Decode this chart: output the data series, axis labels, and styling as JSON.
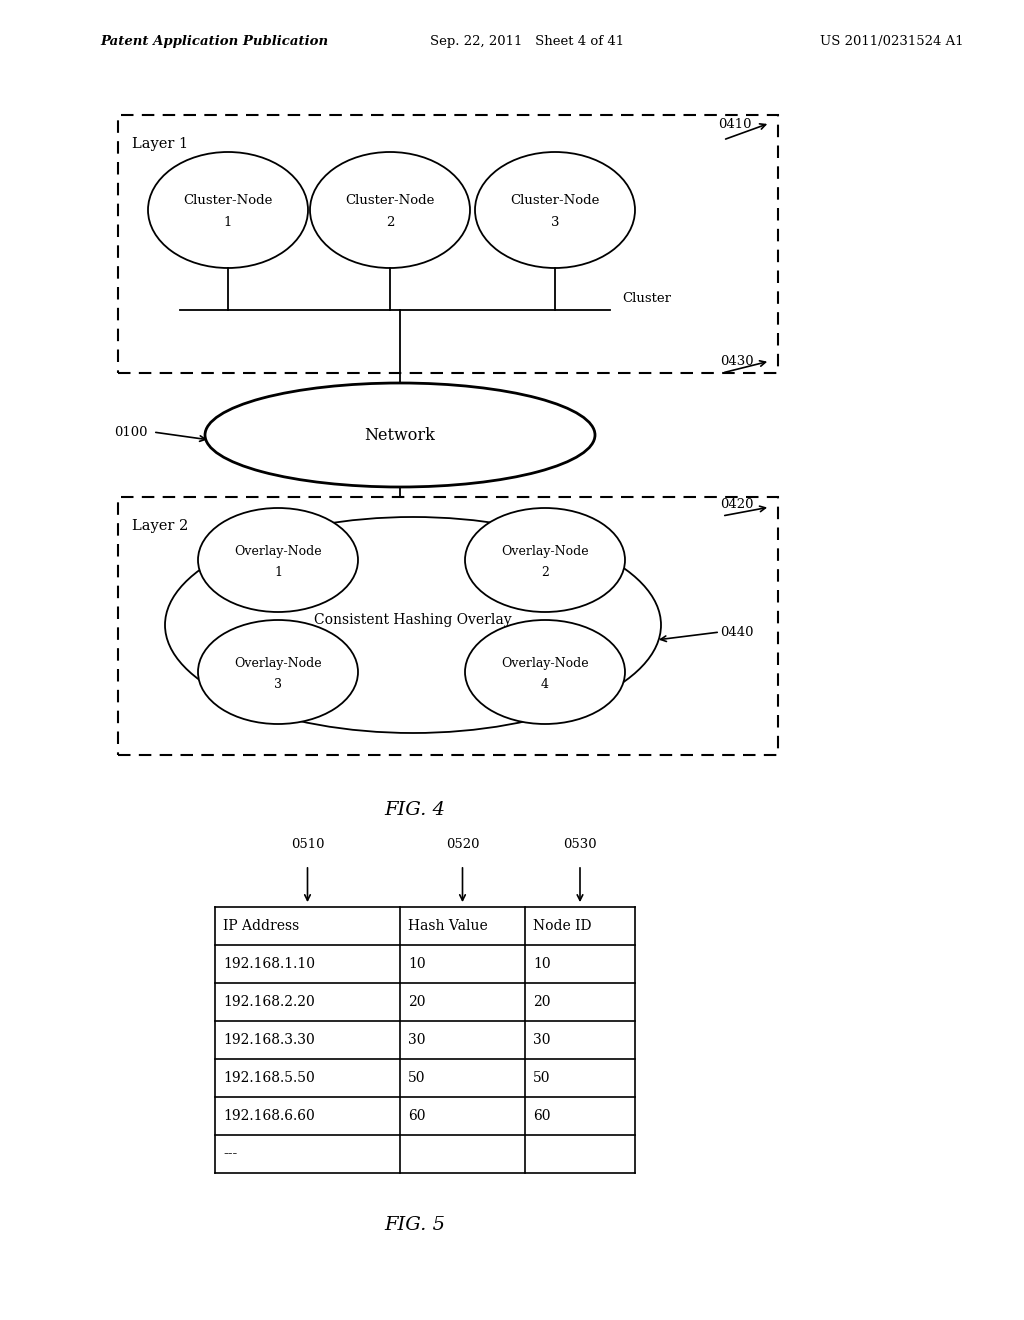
{
  "bg_color": "#ffffff",
  "header_left": "Patent Application Publication",
  "header_center": "Sep. 22, 2011   Sheet 4 of 41",
  "header_right": "US 2011/0231524 A1",
  "fig4_label": "FIG. 4",
  "fig5_label": "FIG. 5",
  "layer1_label": "Layer 1",
  "layer2_label": "Layer 2",
  "cluster_label": "Cluster",
  "network_label": "Network",
  "overlay_label": "Consistent Hashing Overlay",
  "cluster_nodes": [
    "Cluster-Node\n1",
    "Cluster-Node\n2",
    "Cluster-Node\n3"
  ],
  "overlay_nodes": [
    "Overlay-Node\n1",
    "Overlay-Node\n2",
    "Overlay-Node\n3",
    "Overlay-Node\n4"
  ],
  "ref_0410": "0410",
  "ref_0100": "0100",
  "ref_0430": "0430",
  "ref_0420": "0420",
  "ref_0440": "0440",
  "ref_0510": "0510",
  "ref_0520": "0520",
  "ref_0530": "0530",
  "table_headers": [
    "IP Address",
    "Hash Value",
    "Node ID"
  ],
  "table_rows": [
    [
      "192.168.1.10",
      "10",
      "10"
    ],
    [
      "192.168.2.20",
      "20",
      "20"
    ],
    [
      "192.168.3.30",
      "30",
      "30"
    ],
    [
      "192.168.5.50",
      "50",
      "50"
    ],
    [
      "192.168.6.60",
      "60",
      "60"
    ],
    [
      "---",
      "",
      ""
    ]
  ]
}
